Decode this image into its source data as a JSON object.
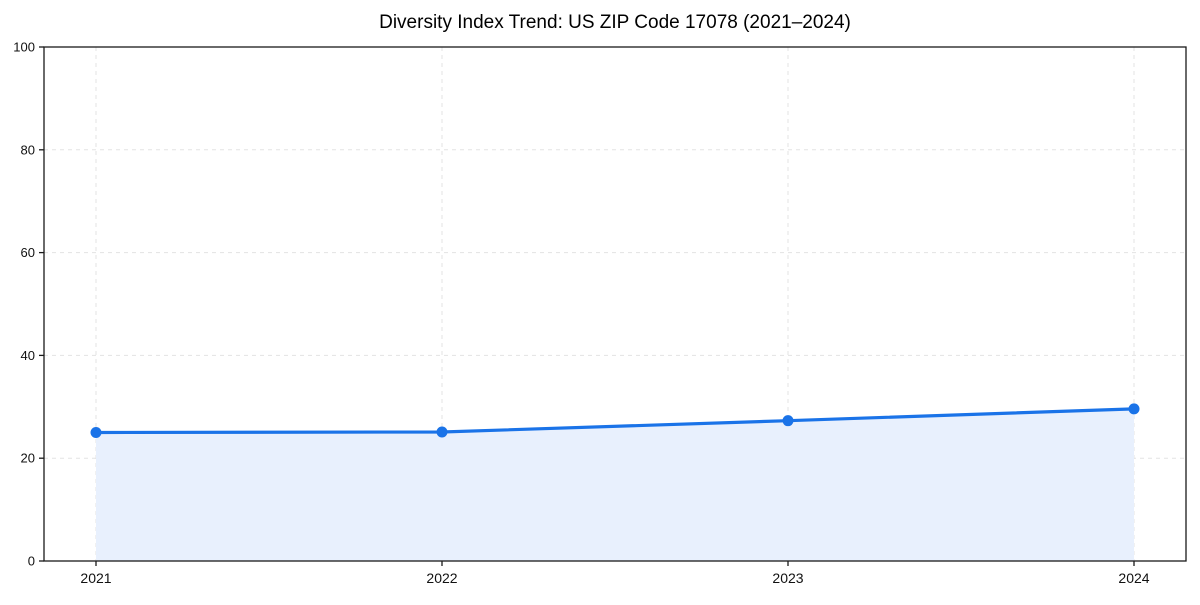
{
  "chart": {
    "title": "Diversity Index Trend: US ZIP Code 17078 (2021–2024)"
  },
  "chart_data": {
    "type": "line",
    "subtype": "area-filled-line-with-markers",
    "title": "Diversity Index Trend: US ZIP Code 17078 (2021–2024)",
    "xlabel": "",
    "ylabel": "",
    "x": [
      2021,
      2022,
      2023,
      2024
    ],
    "series": [
      {
        "name": "Diversity Index",
        "values": [
          25.0,
          25.1,
          27.3,
          29.6
        ]
      }
    ],
    "xticks": [
      "2021",
      "2022",
      "2023",
      "2024"
    ],
    "yticks": [
      0,
      20,
      40,
      60,
      80,
      100
    ],
    "xlim": [
      2020.85,
      2024.15
    ],
    "ylim": [
      0,
      100
    ],
    "grid": true,
    "grid_style": "dashed",
    "legend": false,
    "colors": {
      "line": "#1a73e8",
      "marker": "#1a73e8",
      "area_fill": "#e8f0fd",
      "grid": "#e3e3e3",
      "spine": "#1a1a1a",
      "tick": "#1a1a1a",
      "background": "#ffffff"
    }
  }
}
